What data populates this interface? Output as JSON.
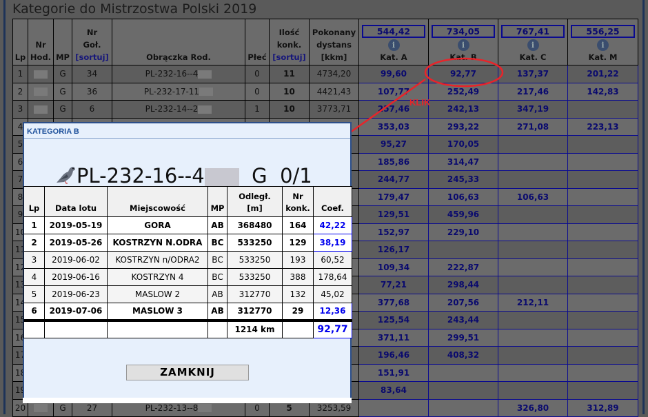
{
  "page": {
    "title": "Kategorie do Mistrzostwa Polski 2019"
  },
  "main_table": {
    "headers": {
      "lp": "Lp",
      "nr_hod": [
        "Nr",
        "Hod."
      ],
      "mp": "MP",
      "nr_gol": [
        "Nr",
        "Goł."
      ],
      "sort": "[sortuj]",
      "obraczka": "Obrączka Rod.",
      "plec": "Płeć",
      "ilosc": [
        "Ilość",
        "konk."
      ],
      "pokonany": [
        "Pokonany",
        "dystans",
        "[kkm]"
      ]
    },
    "categories": [
      {
        "label": "Kat. A",
        "total": "544,42"
      },
      {
        "label": "Kat. B",
        "total": "734,05"
      },
      {
        "label": "Kat. C",
        "total": "767,41"
      },
      {
        "label": "Kat. M",
        "total": "556,25"
      }
    ],
    "info_icon": "info-circle-icon",
    "rows": [
      {
        "lp": "1",
        "mp": "G",
        "nr_gol": "34",
        "obraczka": "PL-232-16--4",
        "plec": "0",
        "ilosc": "11",
        "dystans": "4734,20",
        "kat": [
          "99,60",
          "92,77",
          "137,37",
          "201,22"
        ]
      },
      {
        "lp": "2",
        "mp": "G",
        "nr_gol": "36",
        "obraczka": "PL-232-17-11",
        "plec": "0",
        "ilosc": "10",
        "dystans": "4421,43",
        "kat": [
          "107,77",
          "252,49",
          "217,46",
          "142,83"
        ]
      },
      {
        "lp": "3",
        "mp": "G",
        "nr_gol": "6",
        "obraczka": "PL-232-14--2",
        "plec": "1",
        "ilosc": "10",
        "dystans": "3773,71",
        "kat": [
          "257,46",
          "242,13",
          "347,19",
          ""
        ]
      },
      {
        "lp": "4",
        "kat": [
          "353,03",
          "293,22",
          "271,08",
          "223,13"
        ]
      },
      {
        "lp": "5",
        "kat": [
          "95,27",
          "170,05",
          "",
          ""
        ]
      },
      {
        "lp": "6",
        "kat": [
          "185,86",
          "314,47",
          "",
          ""
        ]
      },
      {
        "lp": "7",
        "kat": [
          "244,77",
          "245,33",
          "",
          ""
        ]
      },
      {
        "lp": "8",
        "kat": [
          "179,47",
          "106,63",
          "106,63",
          ""
        ]
      },
      {
        "lp": "9",
        "kat": [
          "129,51",
          "459,96",
          "",
          ""
        ]
      },
      {
        "lp": "10",
        "kat": [
          "152,97",
          "229,10",
          "",
          ""
        ]
      },
      {
        "lp": "11",
        "kat": [
          "126,17",
          "",
          "",
          ""
        ]
      },
      {
        "lp": "12",
        "kat": [
          "109,34",
          "222,87",
          "",
          ""
        ]
      },
      {
        "lp": "13",
        "kat": [
          "77,21",
          "298,44",
          "",
          ""
        ]
      },
      {
        "lp": "14",
        "kat": [
          "377,68",
          "207,56",
          "212,11",
          ""
        ]
      },
      {
        "lp": "15",
        "kat": [
          "125,54",
          "243,44",
          "",
          ""
        ]
      },
      {
        "lp": "16",
        "kat": [
          "371,11",
          "299,51",
          "",
          ""
        ]
      },
      {
        "lp": "17",
        "kat": [
          "196,46",
          "408,32",
          "",
          ""
        ]
      },
      {
        "lp": "18",
        "kat": [
          "151,91",
          "",
          "",
          ""
        ]
      },
      {
        "lp": "19",
        "kat": [
          "83,64",
          "",
          "",
          ""
        ]
      },
      {
        "lp": "20",
        "mp": "G",
        "nr_gol": "27",
        "obraczka": "PL-232-13--8",
        "plec": "0",
        "ilosc": "5",
        "dystans": "3253,59",
        "kat": [
          "",
          "",
          "326,80",
          "312,89"
        ]
      }
    ]
  },
  "annotation": {
    "label": "KLIK",
    "color": "#e8242a"
  },
  "dialog": {
    "title": "KATEGORIA B",
    "ring": "PL-232-16--4",
    "sex": "G",
    "ratio": "0/1",
    "icon": "pigeon-icon",
    "headers": {
      "lp": "Lp",
      "data": "Data lotu",
      "miejsc": "Miejscowość",
      "mp": "MP",
      "odl": [
        "Odległ.",
        "[m]"
      ],
      "nr": [
        "Nr",
        "konk."
      ],
      "coef": "Coef."
    },
    "rows": [
      {
        "lp": "1",
        "data": "2019-05-19",
        "miejsc": "GORA",
        "mp": "AB",
        "odl": "368480",
        "nr": "164",
        "coef": "42,22",
        "counted": true
      },
      {
        "lp": "2",
        "data": "2019-05-26",
        "miejsc": "KOSTRZYN N.ODRA",
        "mp": "BC",
        "odl": "533250",
        "nr": "129",
        "coef": "38,19",
        "counted": true
      },
      {
        "lp": "3",
        "data": "2019-06-02",
        "miejsc": "KOSTRZYN n/ODRA2",
        "mp": "BC",
        "odl": "533250",
        "nr": "193",
        "coef": "60,52",
        "counted": false
      },
      {
        "lp": "4",
        "data": "2019-06-16",
        "miejsc": "KOSTRZYN 4",
        "mp": "BC",
        "odl": "533250",
        "nr": "388",
        "coef": "178,64",
        "counted": false
      },
      {
        "lp": "5",
        "data": "2019-06-23",
        "miejsc": "MASLOW 2",
        "mp": "AB",
        "odl": "312770",
        "nr": "132",
        "coef": "45,02",
        "counted": false
      },
      {
        "lp": "6",
        "data": "2019-07-06",
        "miejsc": "MASLOW 3",
        "mp": "AB",
        "odl": "312770",
        "nr": "29",
        "coef": "12,36",
        "counted": true
      }
    ],
    "total_distance": "1214 km",
    "total_coef": "92,77",
    "close_label": "ZAMKNIJ"
  }
}
